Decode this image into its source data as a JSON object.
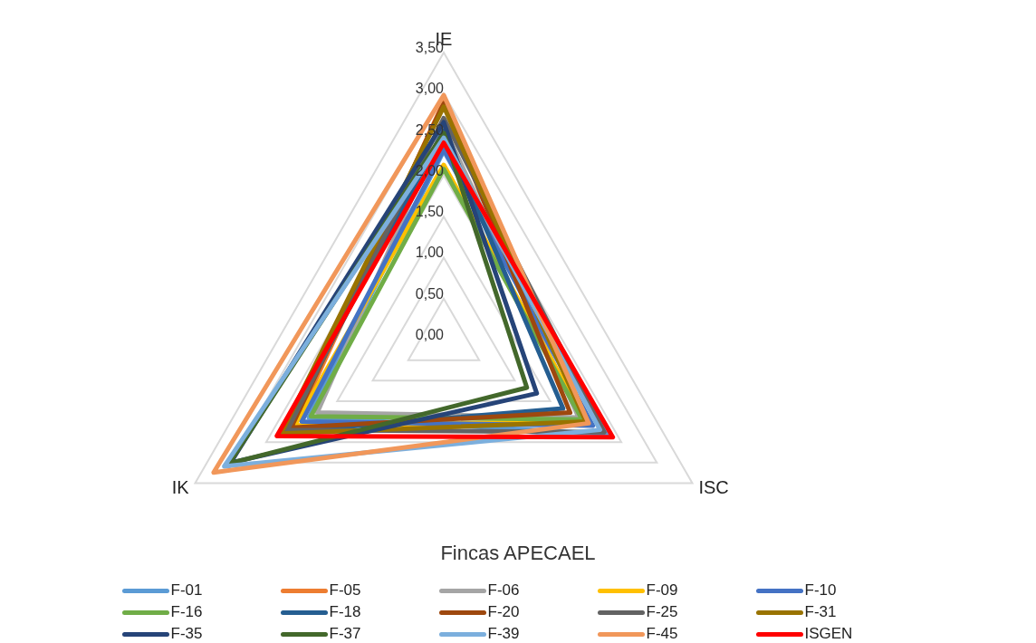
{
  "chart_data": {
    "type": "radar",
    "title": "Fincas APECAEL",
    "categories": [
      "IE",
      "ISC",
      "IK"
    ],
    "ylim": [
      0,
      3.5
    ],
    "yticks": [
      {
        "value": 0,
        "label": "0,00"
      },
      {
        "value": 0.5,
        "label": "0,50"
      },
      {
        "value": 1,
        "label": "1,00"
      },
      {
        "value": 1.5,
        "label": "1,50"
      },
      {
        "value": 2,
        "label": "2,00"
      },
      {
        "value": 2.5,
        "label": "2,50"
      },
      {
        "value": 3,
        "label": "3,00"
      },
      {
        "value": 3.5,
        "label": "3,50"
      }
    ],
    "grid": true,
    "legend": "bottom",
    "marker": "none",
    "line_style": "solid",
    "series": [
      {
        "name": "F-01",
        "color": "#5b9bd5",
        "values": [
          2.3,
          2.3,
          1.9
        ]
      },
      {
        "name": "F-05",
        "color": "#ed7d31",
        "values": [
          2.9,
          2.0,
          2.1
        ]
      },
      {
        "name": "F-06",
        "color": "#a5a5a5",
        "values": [
          2.6,
          1.9,
          1.78
        ]
      },
      {
        "name": "F-09",
        "color": "#ffc000",
        "values": [
          2.13,
          2.0,
          2.1
        ]
      },
      {
        "name": "F-10",
        "color": "#4472c4",
        "values": [
          2.32,
          2.1,
          2.0
        ]
      },
      {
        "name": "F-16",
        "color": "#70ad47",
        "values": [
          2.08,
          1.95,
          1.87
        ]
      },
      {
        "name": "F-18",
        "color": "#255e91",
        "values": [
          2.55,
          1.68,
          2.25
        ]
      },
      {
        "name": "F-20",
        "color": "#9e480e",
        "values": [
          2.88,
          1.78,
          2.15
        ]
      },
      {
        "name": "F-25",
        "color": "#636363",
        "values": [
          2.7,
          2.26,
          2.2
        ]
      },
      {
        "name": "F-31",
        "color": "#997300",
        "values": [
          2.84,
          2.0,
          2.29
        ]
      },
      {
        "name": "F-35",
        "color": "#264478",
        "values": [
          2.65,
          1.31,
          3.0
        ]
      },
      {
        "name": "F-37",
        "color": "#43682b",
        "values": [
          2.52,
          1.17,
          3.02
        ]
      },
      {
        "name": "F-39",
        "color": "#7cafdd",
        "values": [
          2.46,
          2.2,
          3.09
        ]
      },
      {
        "name": "F-45",
        "color": "#f1975a",
        "values": [
          2.98,
          2.04,
          3.24
        ]
      },
      {
        "name": "ISGEN",
        "color": "#ff0000",
        "values": [
          2.4,
          2.38,
          2.35
        ]
      }
    ]
  }
}
